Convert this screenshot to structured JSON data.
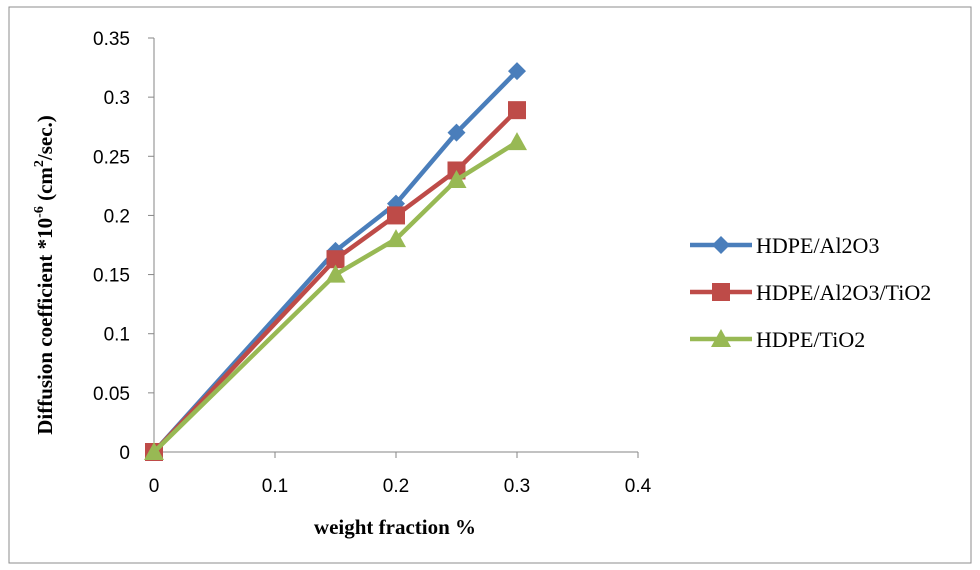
{
  "chart_data": {
    "type": "line",
    "xlabel": "weight fraction %",
    "ylabel": {
      "prefix": "Diffusion coefficient *10",
      "exponent": "-6",
      "unit_open": " (cm",
      "unit_exp": "2",
      "unit_close": "/sec.)"
    },
    "xlim": [
      0,
      0.4
    ],
    "ylim": [
      0,
      0.35
    ],
    "x_ticks": [
      0,
      0.1,
      0.2,
      0.3,
      0.4
    ],
    "y_ticks": [
      0,
      0.05,
      0.1,
      0.15,
      0.2,
      0.25,
      0.3,
      0.35
    ],
    "grid": false,
    "legend_position": "right",
    "series": [
      {
        "name": "HDPE/Al2O3",
        "color": "#4a7ebb",
        "marker": "diamond",
        "x": [
          0,
          0.15,
          0.2,
          0.25,
          0.3
        ],
        "y": [
          0,
          0.17,
          0.21,
          0.27,
          0.322
        ]
      },
      {
        "name": "HDPE/Al2O3/TiO2",
        "color": "#be4b48",
        "marker": "square",
        "x": [
          0,
          0.15,
          0.2,
          0.25,
          0.3
        ],
        "y": [
          0,
          0.163,
          0.2,
          0.238,
          0.289
        ]
      },
      {
        "name": "HDPE/TiO2",
        "color": "#98b954",
        "marker": "triangle",
        "x": [
          0,
          0.15,
          0.2,
          0.25,
          0.3
        ],
        "y": [
          0,
          0.15,
          0.18,
          0.23,
          0.262
        ]
      }
    ]
  }
}
